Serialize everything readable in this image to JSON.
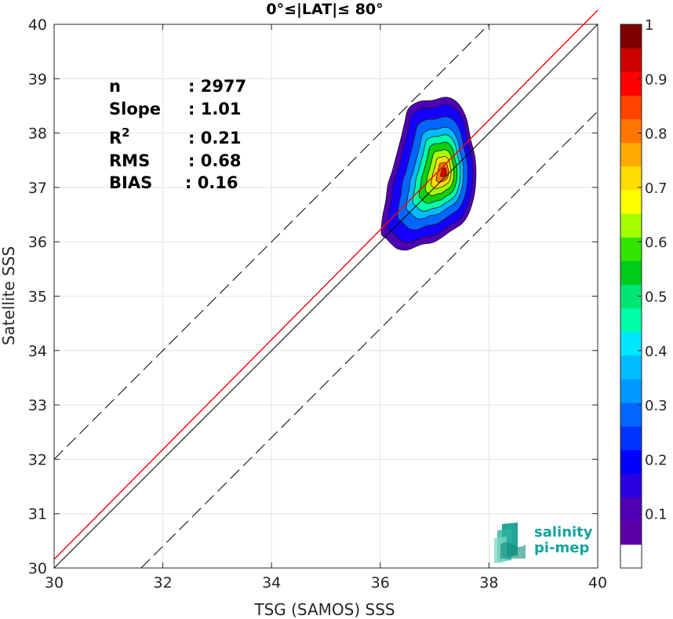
{
  "chart_data": {
    "type": "scatter",
    "title": "0°≤|LAT|≤ 80°",
    "xlabel": "TSG (SAMOS) SSS",
    "ylabel": "Satellite SSS",
    "xlim": [
      30,
      40
    ],
    "ylim": [
      30,
      40
    ],
    "xticks": [
      30,
      32,
      34,
      36,
      38,
      40
    ],
    "yticks": [
      30,
      31,
      32,
      33,
      34,
      35,
      36,
      37,
      38,
      39,
      40
    ],
    "grid": true,
    "stats": [
      {
        "label": "n",
        "value": ": 2977"
      },
      {
        "label": "Slope",
        "value": ": 1.01"
      },
      {
        "label": "R",
        "sup": "2",
        "value": ": 0.21"
      },
      {
        "label": "RMS",
        "value": ": 0.68"
      },
      {
        "label": "BIAS",
        "value": ": 0.16"
      }
    ],
    "reference_lines": [
      {
        "kind": "identity",
        "color": "#000000",
        "points": [
          [
            30,
            30
          ],
          [
            40,
            40
          ]
        ]
      },
      {
        "kind": "regression",
        "color": "#ff0000",
        "points": [
          [
            30,
            30.16
          ],
          [
            40,
            40.26
          ]
        ]
      },
      {
        "kind": "upper-bound",
        "style": "dashed",
        "color": "#000000",
        "points": [
          [
            30,
            32
          ],
          [
            38,
            40
          ]
        ]
      },
      {
        "kind": "lower-bound",
        "style": "dashed",
        "color": "#000000",
        "points": [
          [
            31.6,
            30
          ],
          [
            40,
            38.4
          ]
        ]
      }
    ],
    "density_contours": {
      "center": [
        37.18,
        37.28
      ],
      "levels": [
        0.05,
        0.1,
        0.2,
        0.3,
        0.4,
        0.5,
        0.6,
        0.7,
        0.8,
        0.9
      ],
      "outer_outline": [
        [
          36.52,
          38.45
        ],
        [
          36.72,
          38.58
        ],
        [
          36.95,
          38.6
        ],
        [
          37.22,
          38.66
        ],
        [
          37.43,
          38.55
        ],
        [
          37.58,
          38.28
        ],
        [
          37.66,
          37.9
        ],
        [
          37.75,
          37.5
        ],
        [
          37.75,
          37.0
        ],
        [
          37.66,
          36.6
        ],
        [
          37.52,
          36.35
        ],
        [
          37.3,
          36.2
        ],
        [
          37.0,
          36.0
        ],
        [
          36.75,
          35.95
        ],
        [
          36.5,
          35.85
        ],
        [
          36.3,
          35.88
        ],
        [
          36.12,
          36.05
        ],
        [
          36.02,
          36.15
        ],
        [
          36.04,
          36.45
        ],
        [
          36.1,
          36.75
        ],
        [
          36.14,
          37.05
        ],
        [
          36.22,
          37.3
        ],
        [
          36.3,
          37.6
        ],
        [
          36.38,
          37.9
        ],
        [
          36.45,
          38.2
        ]
      ],
      "fill_colors": [
        "#4f00b5",
        "#1400ff",
        "#0066ff",
        "#00bbff",
        "#00ffaa",
        "#0dd10d",
        "#a6ff00",
        "#ffdd00",
        "#ff7700",
        "#e60000"
      ]
    },
    "colorbar": {
      "min": 0,
      "max": 1,
      "ticks": [
        0.1,
        0.2,
        0.3,
        0.4,
        0.5,
        0.6,
        0.7,
        0.8,
        0.9,
        1
      ],
      "tick_labels": [
        "0.1",
        "0.2",
        "0.3",
        "0.4",
        "0.5",
        "0.6",
        "0.7",
        "0.8",
        "0.9",
        "1"
      ],
      "colors": [
        "#ffffff",
        "#5b00a8",
        "#4f00b5",
        "#2a00e0",
        "#0000ff",
        "#0033ff",
        "#0066ff",
        "#0099ff",
        "#00bbff",
        "#00e6ff",
        "#00ffaa",
        "#00e673",
        "#00cc1a",
        "#33e600",
        "#a6ff00",
        "#ffff00",
        "#ffdd00",
        "#ffaa00",
        "#ff7700",
        "#ff4400",
        "#ff0000",
        "#cc0000",
        "#800000"
      ]
    }
  },
  "logo": {
    "line1": "salinity",
    "line2": "pi-mep"
  }
}
